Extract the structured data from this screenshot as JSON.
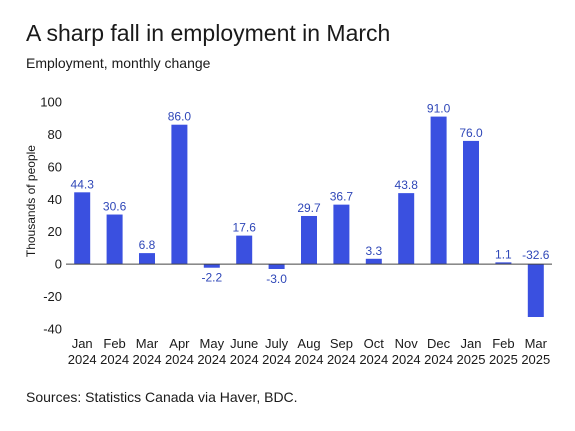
{
  "title": "A sharp fall in employment in March",
  "subtitle": "Employment, monthly change",
  "source": "Sources: Statistics Canada via Haver, BDC.",
  "colors": {
    "bar": "#3a50e0",
    "label": "#2f47b8",
    "axis": "#444444"
  },
  "chart_data": {
    "type": "bar",
    "title": "A sharp fall in employment in March",
    "subtitle": "Employment, monthly change",
    "xlabel": "",
    "ylabel": "Thousands of people",
    "categories": [
      [
        "Jan",
        "2024"
      ],
      [
        "Feb",
        "2024"
      ],
      [
        "Mar",
        "2024"
      ],
      [
        "Apr",
        "2024"
      ],
      [
        "May",
        "2024"
      ],
      [
        "June",
        "2024"
      ],
      [
        "July",
        "2024"
      ],
      [
        "Aug",
        "2024"
      ],
      [
        "Sep",
        "2024"
      ],
      [
        "Oct",
        "2024"
      ],
      [
        "Nov",
        "2024"
      ],
      [
        "Dec",
        "2024"
      ],
      [
        "Jan",
        "2025"
      ],
      [
        "Feb",
        "2025"
      ],
      [
        "Mar",
        "2025"
      ]
    ],
    "values": [
      44.3,
      30.6,
      6.8,
      86.0,
      -2.2,
      17.6,
      -3.0,
      29.7,
      36.7,
      3.3,
      43.8,
      91.0,
      76.0,
      1.1,
      -32.6
    ],
    "value_labels": [
      "44.3",
      "30.6",
      "6.8",
      "86.0",
      "-2.2",
      "17.6",
      "-3.0",
      "29.7",
      "36.7",
      "3.3",
      "43.8",
      "91.0",
      "76.0",
      "1.1",
      "-32.6"
    ],
    "yticks": [
      100,
      80,
      60,
      40,
      20,
      0,
      -20,
      -40
    ],
    "ytick_labels": [
      "100",
      "80",
      "60",
      "40",
      "20",
      "0",
      "-20",
      "-40"
    ],
    "ylim": [
      -40,
      100
    ],
    "grid": false,
    "legend": "none"
  }
}
